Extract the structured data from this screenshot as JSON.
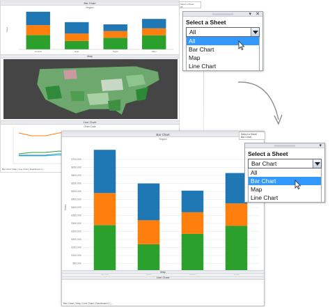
{
  "colors": {
    "blue": "#1f77b4",
    "orange": "#ff7f0e",
    "green": "#2ca02c",
    "highlight": "#3399ff"
  },
  "top_widget": {
    "label": "Select a Sheet",
    "selected": "All",
    "options": [
      "All",
      "Bar Chart",
      "Map",
      "Line Chart"
    ],
    "highlighted_index": 0
  },
  "bottom_widget": {
    "label": "Select a Sheet",
    "selected": "Bar Chart",
    "options": [
      "All",
      "Bar Chart",
      "Map",
      "Line Chart"
    ],
    "highlighted_index": 1
  },
  "back_dashboard": {
    "bar_title": "Bar Chart",
    "bar_subtitle": "Region",
    "map_title": "Map",
    "line_title": "Line Chart",
    "line_subtitle": "Order Date",
    "legend_label": "Select a Sheet",
    "legend_value": "All",
    "tabs": "Bar Chart | Map | Line Chart | Dashboard 1 | ..."
  },
  "front_dashboard": {
    "title": "Bar Chart",
    "subtitle": "Region",
    "map_title": "Map",
    "line_title": "Line Chart",
    "legend_label": "Select a Sheet",
    "legend_value": "Bar Chart",
    "tabs": "Bar Chart | Map | Line Chart | Dashboard 1 | ..."
  },
  "chart_data": {
    "type": "bar",
    "title": "Bar Chart",
    "subtitle": "Region",
    "categories": [
      "Central",
      "East",
      "South",
      "West"
    ],
    "ylabel": "Sales",
    "ylim": [
      0,
      800000
    ],
    "yticks": [
      "$0",
      "$50,000",
      "$100,000",
      "$150,000",
      "$200,000",
      "$250,000",
      "$300,000",
      "$350,000",
      "$400,000",
      "$450,000",
      "$500,000",
      "$550,000",
      "$600,000",
      "$650,000",
      "$700,000"
    ],
    "series": [
      {
        "color": "#2ca02c",
        "values": [
          290000,
          170000,
          235000,
          285000
        ]
      },
      {
        "color": "#ff7f0e",
        "values": [
          200000,
          150000,
          135000,
          140000
        ]
      },
      {
        "color": "#1f77b4",
        "values": [
          270000,
          230000,
          135000,
          190000
        ]
      }
    ],
    "grid": true
  }
}
